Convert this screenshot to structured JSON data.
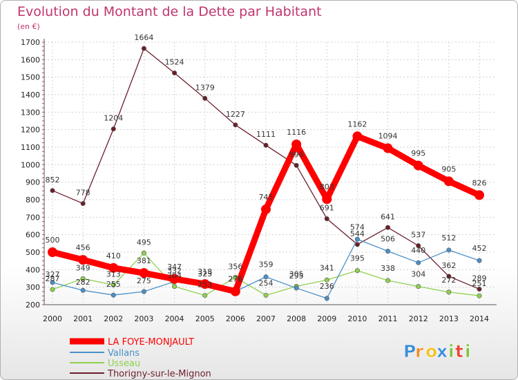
{
  "chart_data": {
    "type": "line",
    "title": "Evolution du Montant de la Dette par Habitant",
    "subtitle": "(en €)",
    "x": [
      "2000",
      "2001",
      "2002",
      "2003",
      "2004",
      "2005",
      "2006",
      "2007",
      "2008",
      "2009",
      "2010",
      "2011",
      "2012",
      "2013",
      "2014"
    ],
    "y_ticks": [
      200,
      300,
      400,
      500,
      600,
      700,
      800,
      900,
      1000,
      1100,
      1200,
      1300,
      1400,
      1500,
      1600,
      1700
    ],
    "ylim": [
      200,
      1700
    ],
    "grid": true,
    "series": [
      {
        "name": "LA FOYE-MONJAULT",
        "color": "#ff0000",
        "values": [
          500,
          456,
          410,
          381,
          347,
          318,
          276,
          745,
          1116,
          803,
          1162,
          1094,
          995,
          905,
          826
        ],
        "labels": [
          "500",
          "456",
          "410",
          "381",
          "347",
          "318",
          "276",
          "745",
          "1116",
          "803",
          "1162",
          "1094",
          "995",
          "905",
          "826"
        ]
      },
      {
        "name": "Vallans",
        "color": "#4a90c8",
        "values": [
          327,
          282,
          255,
          275,
          332,
          323,
          276,
          359,
          295,
          236,
          574,
          506,
          440,
          512,
          452
        ],
        "labels": [
          "327",
          "282",
          "255",
          "275",
          "332",
          "323",
          "276",
          "359",
          "295",
          "236",
          "574",
          "506",
          "440",
          "512",
          "452"
        ]
      },
      {
        "name": "Usseau",
        "color": "#8fd14f",
        "values": [
          287,
          349,
          313,
          495,
          304,
          253,
          356,
          254,
          305,
          341,
          395,
          338,
          304,
          272,
          251
        ],
        "labels": [
          "287",
          "349",
          "313",
          "495",
          "304",
          "253",
          "356",
          "254",
          "305",
          "341",
          "395",
          "338",
          "304",
          "272",
          "251"
        ]
      },
      {
        "name": "Thorigny-sur-le-Mignon",
        "color": "#6b1e2a",
        "values": [
          852,
          778,
          1204,
          1664,
          1524,
          1379,
          1227,
          1111,
          996,
          691,
          544,
          641,
          537,
          362,
          289
        ],
        "labels": [
          "852",
          "778",
          "1204",
          "1664",
          "1524",
          "1379",
          "1227",
          "1111",
          "996",
          "691",
          "544",
          "641",
          "537",
          "362",
          "289"
        ]
      }
    ]
  },
  "legend": {
    "items": [
      {
        "label": "LA FOYE-MONJAULT",
        "color": "#ff0000"
      },
      {
        "label": "Vallans",
        "color": "#4a90c8"
      },
      {
        "label": "Usseau",
        "color": "#8fd14f"
      },
      {
        "label": "Thorigny-sur-le-Mignon",
        "color": "#6b1e2a"
      }
    ]
  },
  "logo": {
    "letters": [
      "P",
      "r",
      "o",
      "x",
      "i",
      "t",
      "i"
    ],
    "colors": [
      "#3a8fd8",
      "#f28c28",
      "#f2c21b",
      "#3a8fd8",
      "#7fc241",
      "#e8472f",
      "#7fc241"
    ]
  }
}
